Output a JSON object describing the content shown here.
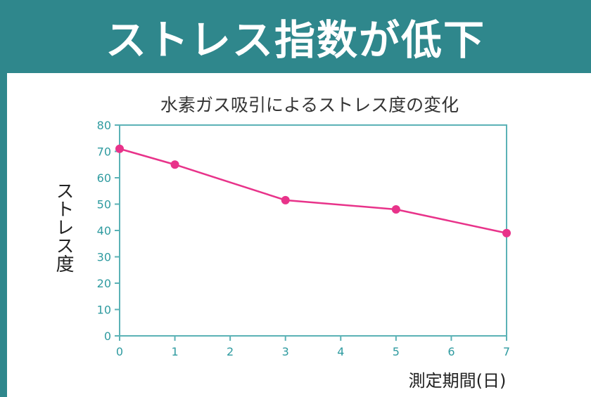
{
  "banner": {
    "title": "ストレス指数が低下"
  },
  "colors": {
    "accent": "#2f878c",
    "line": "#e8338a",
    "axis": "#5bb2b6",
    "tick_text": "#2f9ba0"
  },
  "chart_data": {
    "type": "line",
    "title": "水素ガス吸引によるストレス度の変化",
    "xlabel": "測定期間(日)",
    "ylabel": "ストレス度",
    "xlim": [
      0,
      7
    ],
    "ylim": [
      0,
      80
    ],
    "x_ticks": [
      0,
      1,
      2,
      3,
      4,
      5,
      6,
      7
    ],
    "y_ticks": [
      0,
      10,
      20,
      30,
      40,
      50,
      60,
      70,
      80
    ],
    "grid": false,
    "series": [
      {
        "x": [
          0,
          1,
          3,
          5,
          7
        ],
        "values": [
          71,
          65,
          51.5,
          48,
          39
        ]
      }
    ]
  }
}
